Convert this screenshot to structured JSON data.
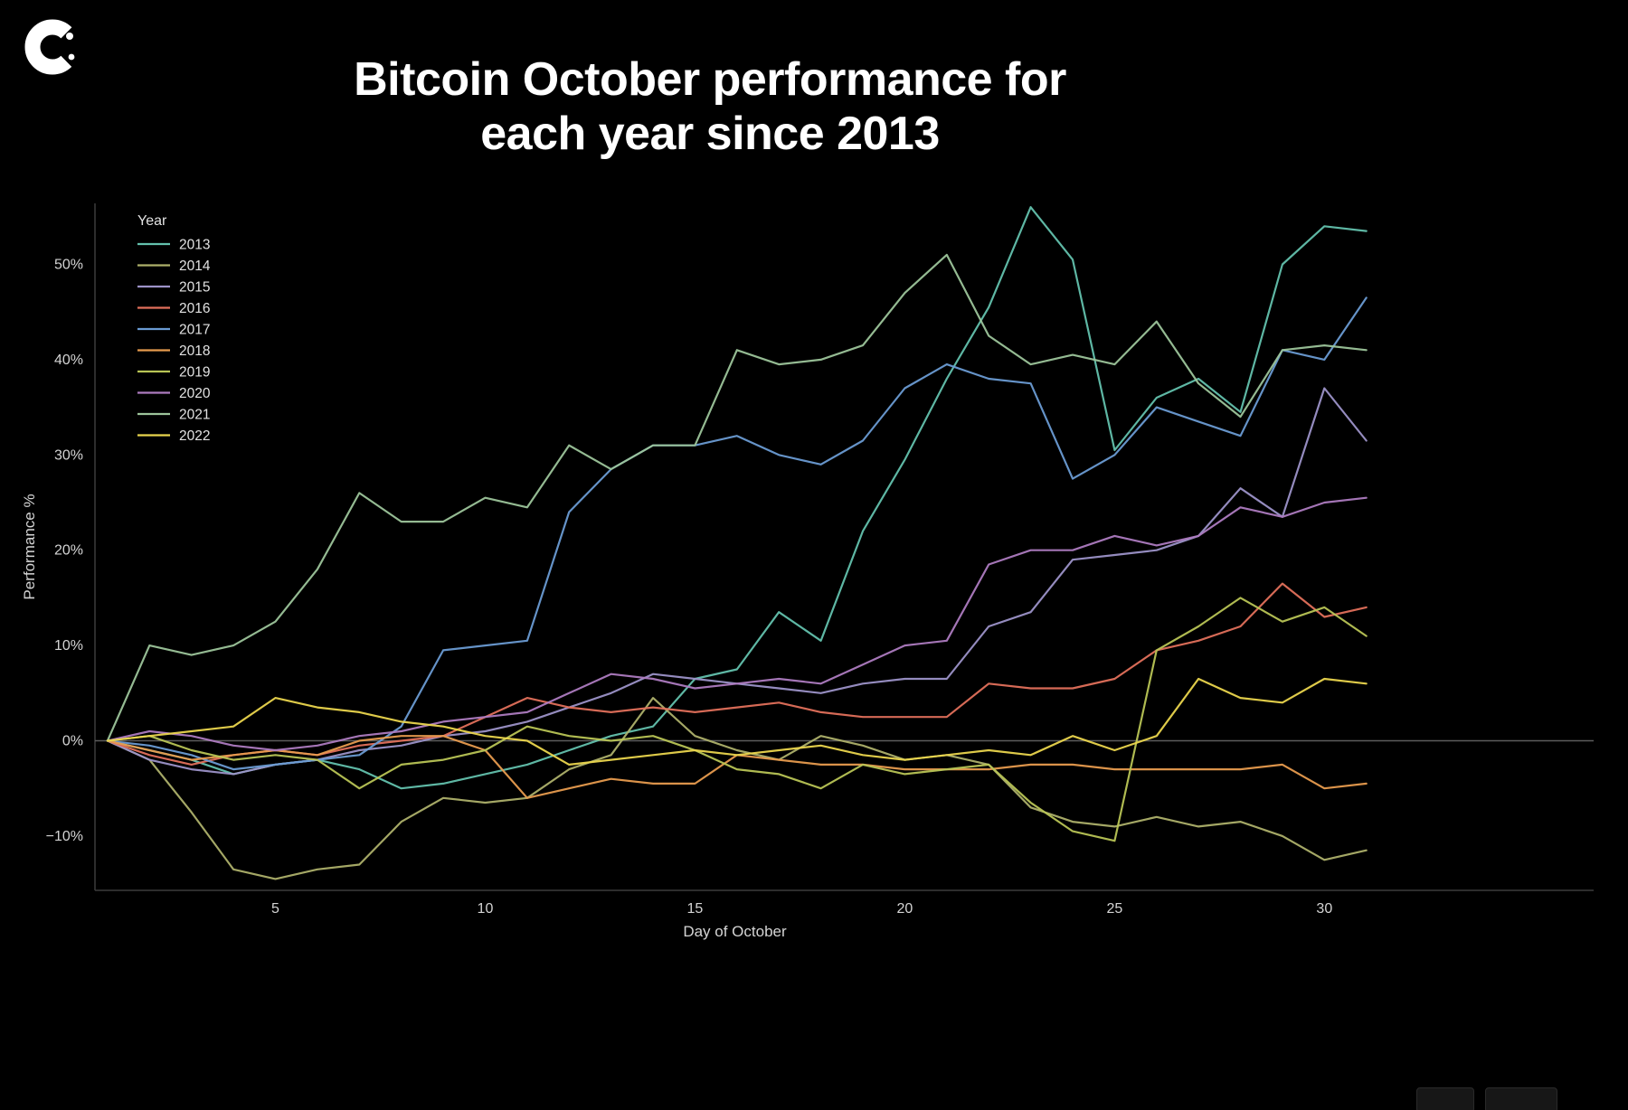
{
  "logo": {
    "brand": "CoinDesk",
    "letter": "C"
  },
  "title": {
    "line1": "Bitcoin October performance for",
    "line2": "each year since 2013"
  },
  "chart_data": {
    "type": "line",
    "title": "Bitcoin October performance for each year since 2013",
    "xlabel": "Day of October",
    "ylabel": "Performance %",
    "legend_title": "Year",
    "legend_position": "top-left",
    "grid": false,
    "xlim": [
      0.7,
      31.2
    ],
    "ylim": [
      -15.7,
      56.4
    ],
    "xticks": [
      5,
      10,
      15,
      20,
      25,
      30
    ],
    "yticks": {
      "values": [
        50,
        40,
        30,
        20,
        10,
        0,
        -10
      ],
      "labels": [
        "50%",
        "40%",
        "30%",
        "20%",
        "10%",
        "0%",
        "−10%"
      ]
    },
    "zero_line": {
      "value": 0,
      "color": "#5c5c5c"
    },
    "x": [
      1,
      2,
      3,
      4,
      5,
      6,
      7,
      8,
      9,
      10,
      11,
      12,
      13,
      14,
      15,
      16,
      17,
      18,
      19,
      20,
      21,
      22,
      23,
      24,
      25,
      26,
      27,
      28,
      29,
      30,
      31
    ],
    "series": [
      {
        "name": "2013",
        "color": "#63c1ad",
        "values": [
          0,
          -1,
          -2,
          -3.5,
          -2.5,
          -2,
          -3,
          -5,
          -4.5,
          -3.5,
          -2.5,
          -1,
          0.5,
          1.5,
          6.5,
          7.5,
          13.5,
          10.5,
          22,
          29.5,
          38,
          45.5,
          56,
          50.5,
          30.5,
          36,
          38,
          34.5,
          50,
          54,
          53.5
        ]
      },
      {
        "name": "2014",
        "color": "#adb06a",
        "values": [
          0,
          -2,
          -7.5,
          -13.5,
          -14.5,
          -13.5,
          -13,
          -8.5,
          -6,
          -6.5,
          -6,
          -3,
          -1.5,
          4.5,
          0.5,
          -1,
          -2,
          0.5,
          -0.5,
          -2,
          -1.5,
          -2.5,
          -7,
          -8.5,
          -9,
          -8,
          -9,
          -8.5,
          -10,
          -12.5,
          -11.5
        ]
      },
      {
        "name": "2015",
        "color": "#9c92c8",
        "values": [
          0,
          -2,
          -3,
          -3.5,
          -2.5,
          -2,
          -1,
          -0.5,
          0.5,
          1,
          2,
          3.5,
          5,
          7,
          6.5,
          6,
          5.5,
          5,
          6,
          6.5,
          6.5,
          12,
          13.5,
          19,
          19.5,
          20,
          21.5,
          26.5,
          23.5,
          37,
          31.5
        ]
      },
      {
        "name": "2016",
        "color": "#e1705b",
        "values": [
          0,
          -1.5,
          -2.5,
          -1.5,
          -1,
          -1.5,
          -0.5,
          0,
          0.5,
          2.5,
          4.5,
          3.5,
          3,
          3.5,
          3,
          3.5,
          4,
          3,
          2.5,
          2.5,
          2.5,
          6,
          5.5,
          5.5,
          6.5,
          9.5,
          10.5,
          12,
          16.5,
          13,
          14
        ]
      },
      {
        "name": "2017",
        "color": "#6a9bd3",
        "values": [
          0,
          -0.5,
          -1.5,
          -3,
          -2.5,
          -2,
          -1.5,
          1.5,
          9.5,
          10,
          10.5,
          24,
          28.5,
          31,
          31,
          32,
          30,
          29,
          31.5,
          37,
          39.5,
          38,
          37.5,
          27.5,
          30,
          35,
          33.5,
          32,
          41,
          40,
          46.5
        ]
      },
      {
        "name": "2018",
        "color": "#e79b4e",
        "values": [
          0,
          -1,
          -2,
          -1.5,
          -1,
          -1.5,
          0,
          0.5,
          0.5,
          -1,
          -6,
          -5,
          -4,
          -4.5,
          -4.5,
          -1.5,
          -2,
          -2.5,
          -2.5,
          -3,
          -3,
          -3,
          -2.5,
          -2.5,
          -3,
          -3,
          -3,
          -3,
          -2.5,
          -5,
          -4.5
        ]
      },
      {
        "name": "2019",
        "color": "#b8c455",
        "values": [
          0,
          0.5,
          -1,
          -2,
          -1.5,
          -2,
          -5,
          -2.5,
          -2,
          -1,
          1.5,
          0.5,
          0,
          0.5,
          -1,
          -3,
          -3.5,
          -5,
          -2.5,
          -3.5,
          -3,
          -2.5,
          -6.5,
          -9.5,
          -10.5,
          9.5,
          12,
          15,
          12.5,
          14,
          11
        ]
      },
      {
        "name": "2020",
        "color": "#ad7bc0",
        "values": [
          0,
          1,
          0.5,
          -0.5,
          -1,
          -0.5,
          0.5,
          1,
          2,
          2.5,
          3,
          5,
          7,
          6.5,
          5.5,
          6,
          6.5,
          6,
          8,
          10,
          10.5,
          18.5,
          20,
          20,
          21.5,
          20.5,
          21.5,
          24.5,
          23.5,
          25,
          25.5
        ]
      },
      {
        "name": "2021",
        "color": "#9cc49a",
        "values": [
          0,
          10,
          9,
          10,
          12.5,
          18,
          26,
          23,
          23,
          25.5,
          24.5,
          31,
          28.5,
          31,
          31,
          41,
          39.5,
          40,
          41.5,
          47,
          51,
          42.5,
          39.5,
          40.5,
          39.5,
          44,
          37.5,
          34,
          41,
          41.5,
          41
        ]
      },
      {
        "name": "2022",
        "color": "#ead54d",
        "values": [
          0,
          0.5,
          1,
          1.5,
          4.5,
          3.5,
          3,
          2,
          1.5,
          0.5,
          0,
          -2.5,
          -2,
          -1.5,
          -1,
          -1.5,
          -1,
          -0.5,
          -1.5,
          -2,
          -1.5,
          -1,
          -1.5,
          0.5,
          -1,
          0.5,
          6.5,
          4.5,
          4,
          6.5,
          6
        ]
      }
    ]
  },
  "style": {
    "background": "#000000",
    "spine_color": "#3c3c3c",
    "tick_text_color": "#d4d4d4",
    "legend_text_color": "#e2e2e2",
    "title_color": "#ffffff"
  }
}
